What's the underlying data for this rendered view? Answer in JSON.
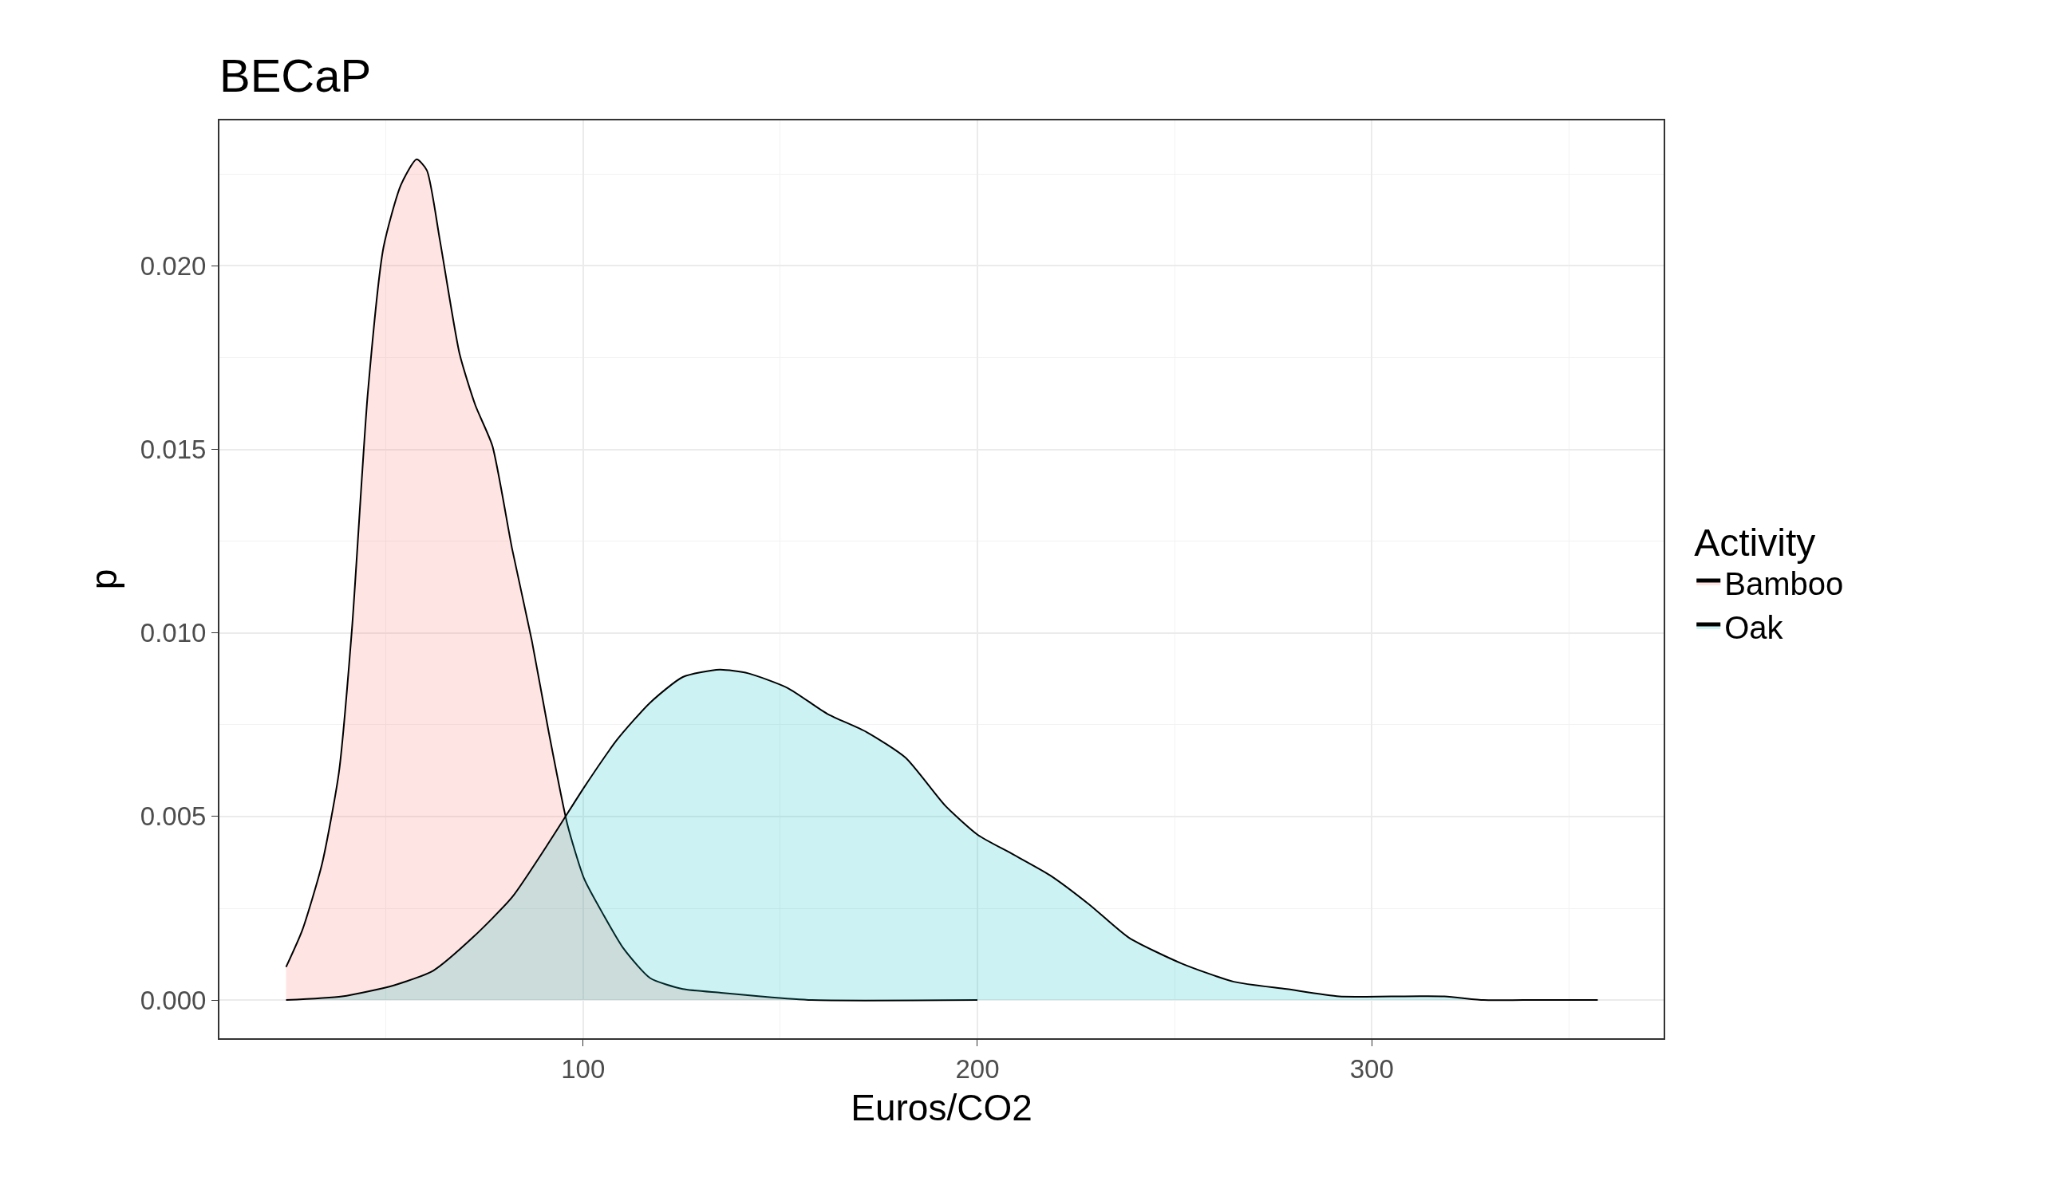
{
  "chart_data": {
    "type": "area",
    "title": "BECaP",
    "xlabel": "Euros/CO2",
    "ylabel": "p",
    "legend_title": "Activity",
    "legend": "right",
    "grid": true,
    "xlim": [
      7.8,
      374
    ],
    "ylim": [
      -0.00104,
      0.02396
    ],
    "xticks": [
      100,
      200,
      300
    ],
    "yticks": [
      {
        "value": 0,
        "label": "0.000"
      },
      {
        "value": 0.005,
        "label": "0.005"
      },
      {
        "value": 0.01,
        "label": "0.010"
      },
      {
        "value": 0.015,
        "label": "0.015"
      },
      {
        "value": 0.02,
        "label": "0.020"
      }
    ],
    "series": [
      {
        "name": "Bamboo",
        "color": "#f8766d",
        "x": [
          24.7,
          28.8,
          33.8,
          38.1,
          41.4,
          45.4,
          49.4,
          53.8,
          57.8,
          60.4,
          63.7,
          68.7,
          72.7,
          77.0,
          82.0,
          87.0,
          91.3,
          96.0,
          100.3,
          105.3,
          110.3,
          117,
          125.3,
          135,
          145,
          158,
          200
        ],
        "values": [
          0.0009,
          0.0019,
          0.0037,
          0.0062,
          0.0101,
          0.0165,
          0.0205,
          0.0222,
          0.0229,
          0.0226,
          0.0207,
          0.0176,
          0.0162,
          0.0151,
          0.0123,
          0.0098,
          0.0073,
          0.0048,
          0.0033,
          0.0023,
          0.0014,
          0.0006,
          0.0003,
          0.0002,
          0.0001,
          0,
          0
        ]
      },
      {
        "name": "Oak",
        "color": "#00bfc4",
        "x": [
          24.7,
          38.9,
          52,
          62,
          72,
          82,
          92,
          100.3,
          108.7,
          117,
          125.3,
          134.6,
          141.9,
          151.9,
          161.9,
          171.9,
          181.8,
          191.8,
          200.1,
          208.5,
          218.4,
          228.4,
          238.4,
          251.7,
          265,
          278.4,
          291.7,
          305,
          318.4,
          328.4,
          338.4,
          357.3
        ],
        "values": [
          0,
          0.0001,
          0.0004,
          0.0008,
          0.0017,
          0.0028,
          0.0044,
          0.0058,
          0.0071,
          0.0081,
          0.0088,
          0.009,
          0.0089,
          0.0085,
          0.0078,
          0.0073,
          0.0066,
          0.0053,
          0.0045,
          0.004,
          0.0034,
          0.0026,
          0.0017,
          0.001,
          0.0005,
          0.0003,
          0.0001,
          0.0001,
          0.0001,
          0,
          0,
          0
        ]
      }
    ]
  }
}
